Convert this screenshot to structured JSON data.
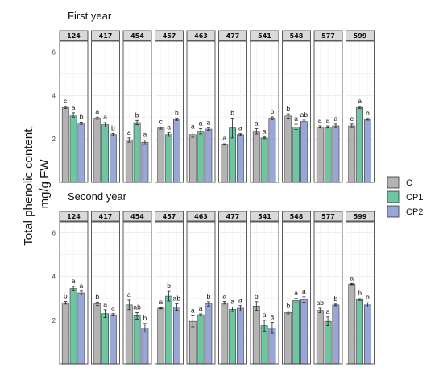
{
  "chart_data": {
    "type": "bar",
    "ylabel": "Total phenolic content,\nmg/g FW",
    "ylim": [
      0,
      6.5
    ],
    "yticks": [
      2,
      4,
      6
    ],
    "grid": true,
    "legend_position": "right",
    "series_names": [
      "C",
      "CP1",
      "CP2"
    ],
    "series_colors": [
      "#b3b3b3",
      "#6fc4a3",
      "#98a6d8"
    ],
    "facets": [
      "124",
      "417",
      "454",
      "457",
      "463",
      "477",
      "541",
      "548",
      "577",
      "599"
    ],
    "panels": [
      {
        "title": "First year",
        "groups": [
          {
            "facet": "124",
            "values": [
              3.45,
              3.1,
              2.72
            ],
            "errors": [
              0.05,
              0.1,
              0.05
            ],
            "letters": [
              "c",
              "a",
              "b"
            ]
          },
          {
            "facet": "417",
            "values": [
              2.95,
              2.65,
              2.2
            ],
            "errors": [
              0.05,
              0.1,
              0.05
            ],
            "letters": [
              "a",
              "a",
              "b"
            ]
          },
          {
            "facet": "454",
            "values": [
              1.95,
              2.75,
              1.85
            ],
            "errors": [
              0.1,
              0.1,
              0.1
            ],
            "letters": [
              "a",
              "b",
              "a"
            ]
          },
          {
            "facet": "457",
            "values": [
              2.5,
              2.2,
              2.9
            ],
            "errors": [
              0.05,
              0.08,
              0.05
            ],
            "letters": [
              "c",
              "a",
              "b"
            ]
          },
          {
            "facet": "463",
            "values": [
              2.2,
              2.35,
              2.45
            ],
            "errors": [
              0.12,
              0.12,
              0.05
            ],
            "letters": [
              "a",
              "a",
              "a"
            ]
          },
          {
            "facet": "477",
            "values": [
              1.75,
              2.5,
              2.2
            ],
            "errors": [
              0.03,
              0.45,
              0.04
            ],
            "letters": [
              "a",
              "b",
              "a"
            ]
          },
          {
            "facet": "541",
            "values": [
              2.35,
              2.05,
              2.95
            ],
            "errors": [
              0.12,
              0.04,
              0.06
            ],
            "letters": [
              "a",
              "a",
              "b"
            ]
          },
          {
            "facet": "548",
            "values": [
              3.05,
              2.55,
              2.8
            ],
            "errors": [
              0.1,
              0.12,
              0.06
            ],
            "letters": [
              "b",
              "a",
              "ab"
            ]
          },
          {
            "facet": "577",
            "values": [
              2.55,
              2.55,
              2.6
            ],
            "errors": [
              0.05,
              0.05,
              0.08
            ],
            "letters": [
              "a",
              "a",
              "a"
            ]
          },
          {
            "facet": "599",
            "values": [
              2.6,
              3.45,
              2.9
            ],
            "errors": [
              0.08,
              0.05,
              0.04
            ],
            "letters": [
              "c",
              "a",
              "b"
            ]
          }
        ]
      },
      {
        "title": "Second year",
        "groups": [
          {
            "facet": "124",
            "values": [
              2.8,
              3.45,
              3.25
            ],
            "errors": [
              0.06,
              0.1,
              0.08
            ],
            "letters": [
              "b",
              "a",
              "a"
            ]
          },
          {
            "facet": "417",
            "values": [
              2.75,
              2.3,
              2.25
            ],
            "errors": [
              0.08,
              0.18,
              0.05
            ],
            "letters": [
              "b",
              "a",
              "a"
            ]
          },
          {
            "facet": "454",
            "values": [
              2.7,
              2.2,
              1.65
            ],
            "errors": [
              0.22,
              0.15,
              0.2
            ],
            "letters": [
              "a",
              "ab",
              "b"
            ]
          },
          {
            "facet": "457",
            "values": [
              2.55,
              3.1,
              2.6
            ],
            "errors": [
              0.03,
              0.22,
              0.15
            ],
            "letters": [
              "a",
              "b",
              "ab"
            ]
          },
          {
            "facet": "463",
            "values": [
              1.95,
              2.25,
              2.75
            ],
            "errors": [
              0.25,
              0.04,
              0.1
            ],
            "letters": [
              "a",
              "a",
              "b"
            ]
          },
          {
            "facet": "477",
            "values": [
              2.8,
              2.5,
              2.55
            ],
            "errors": [
              0.06,
              0.1,
              0.12
            ],
            "letters": [
              "a",
              "a",
              "a"
            ]
          },
          {
            "facet": "541",
            "values": [
              2.65,
              1.75,
              1.65
            ],
            "errors": [
              0.2,
              0.25,
              0.25
            ],
            "letters": [
              "b",
              "a",
              "a"
            ]
          },
          {
            "facet": "548",
            "values": [
              2.35,
              2.9,
              2.95
            ],
            "errors": [
              0.06,
              0.1,
              0.12
            ],
            "letters": [
              "b",
              "a",
              "a"
            ]
          },
          {
            "facet": "577",
            "values": [
              2.45,
              1.95,
              2.7
            ],
            "errors": [
              0.1,
              0.2,
              0.04
            ],
            "letters": [
              "ab",
              "a",
              "b"
            ]
          },
          {
            "facet": "599",
            "values": [
              3.65,
              2.95,
              2.7
            ],
            "errors": [
              0.03,
              0.04,
              0.1
            ],
            "letters": [
              "a",
              "b",
              "b"
            ]
          }
        ]
      }
    ]
  }
}
